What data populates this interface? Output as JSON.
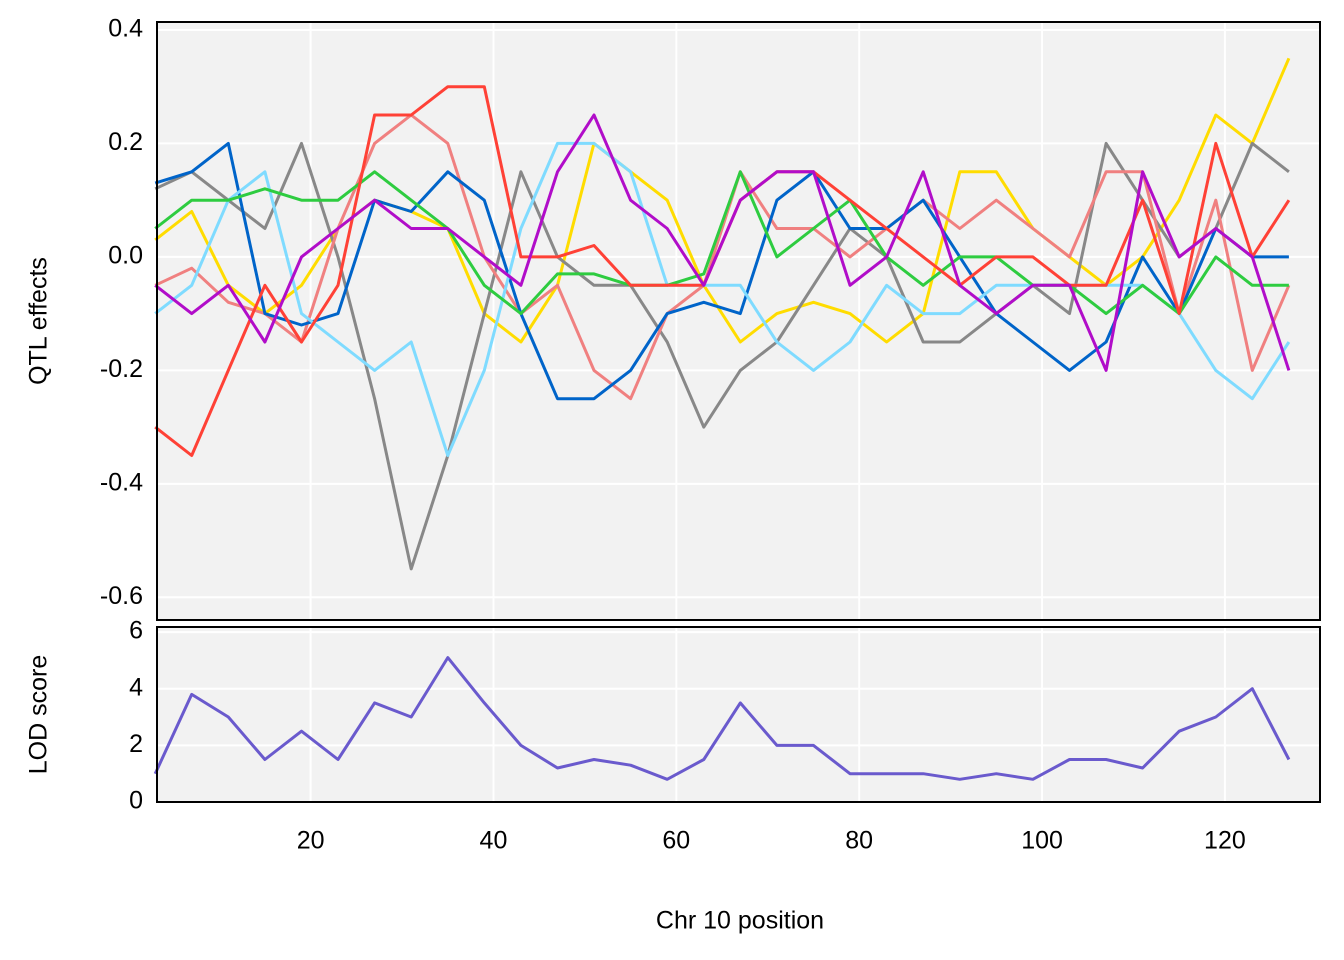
{
  "chart_data": [
    {
      "type": "line",
      "ylabel": "QTL effects",
      "x": [
        3,
        7,
        11,
        15,
        19,
        23,
        27,
        31,
        35,
        39,
        43,
        47,
        51,
        55,
        59,
        63,
        67,
        71,
        75,
        79,
        83,
        87,
        91,
        95,
        99,
        103,
        107,
        111,
        115,
        119,
        123,
        127
      ],
      "xlim": [
        3.2,
        130.4
      ],
      "ylim": [
        -0.64,
        0.414
      ],
      "yticks": [
        0.4,
        0.2,
        {
          "value": 0,
          "label": "0.0"
        },
        -0.2,
        -0.4,
        -0.6
      ],
      "xticks": [
        20,
        40,
        60,
        80,
        100,
        120
      ],
      "grid": true,
      "series": [
        {
          "color": "#FFDC00",
          "values": [
            0.03,
            0.08,
            -0.05,
            -0.1,
            -0.05,
            0.05,
            0.1,
            0.08,
            0.05,
            -0.1,
            -0.15,
            -0.05,
            0.2,
            0.15,
            0.1,
            -0.05,
            -0.15,
            -0.1,
            -0.08,
            -0.1,
            -0.15,
            -0.1,
            0.15,
            0.15,
            0.05,
            0.0,
            -0.05,
            0.0,
            0.1,
            0.25,
            0.2,
            0.35
          ]
        },
        {
          "color": "#888888",
          "values": [
            0.12,
            0.15,
            0.1,
            0.05,
            0.2,
            0.0,
            -0.25,
            -0.55,
            -0.35,
            -0.1,
            0.15,
            0.0,
            -0.05,
            -0.05,
            -0.15,
            -0.3,
            -0.2,
            -0.15,
            -0.05,
            0.05,
            0.0,
            -0.15,
            -0.15,
            -0.1,
            -0.05,
            -0.1,
            0.2,
            0.1,
            0.0,
            0.05,
            0.2,
            0.15
          ]
        },
        {
          "color": "#F08080",
          "values": [
            -0.05,
            -0.02,
            -0.08,
            -0.1,
            -0.15,
            0.05,
            0.2,
            0.25,
            0.2,
            0.0,
            -0.1,
            -0.05,
            -0.2,
            -0.25,
            -0.1,
            -0.05,
            0.15,
            0.05,
            0.05,
            0.0,
            0.05,
            0.1,
            0.05,
            0.1,
            0.05,
            0.0,
            0.15,
            0.15,
            -0.1,
            0.1,
            -0.2,
            -0.05
          ]
        },
        {
          "color": "#0064C9",
          "values": [
            0.13,
            0.15,
            0.2,
            -0.1,
            -0.12,
            -0.1,
            0.1,
            0.08,
            0.15,
            0.1,
            -0.1,
            -0.25,
            -0.25,
            -0.2,
            -0.1,
            -0.08,
            -0.1,
            0.1,
            0.15,
            0.05,
            0.05,
            0.1,
            0.0,
            -0.1,
            -0.15,
            -0.2,
            -0.15,
            0.0,
            -0.1,
            0.05,
            0.0,
            0.0
          ]
        },
        {
          "color": "#7FDBFF",
          "values": [
            -0.1,
            -0.05,
            0.1,
            0.15,
            -0.1,
            -0.15,
            -0.2,
            -0.15,
            -0.35,
            -0.2,
            0.05,
            0.2,
            0.2,
            0.15,
            -0.05,
            -0.05,
            -0.05,
            -0.15,
            -0.2,
            -0.15,
            -0.05,
            -0.1,
            -0.1,
            -0.05,
            -0.05,
            -0.05,
            -0.05,
            -0.05,
            -0.1,
            -0.2,
            -0.25,
            -0.15
          ]
        },
        {
          "color": "#2ECC40",
          "values": [
            0.05,
            0.1,
            0.1,
            0.12,
            0.1,
            0.1,
            0.15,
            0.1,
            0.05,
            -0.05,
            -0.1,
            -0.03,
            -0.03,
            -0.05,
            -0.05,
            -0.03,
            0.15,
            0.0,
            0.05,
            0.1,
            0.0,
            -0.05,
            0.0,
            0.0,
            -0.05,
            -0.05,
            -0.1,
            -0.05,
            -0.1,
            0.0,
            -0.05,
            -0.05
          ]
        },
        {
          "color": "#FF4136",
          "values": [
            -0.3,
            -0.35,
            -0.2,
            -0.05,
            -0.15,
            -0.05,
            0.25,
            0.25,
            0.3,
            0.3,
            0.0,
            0.0,
            0.02,
            -0.05,
            -0.05,
            -0.05,
            0.1,
            0.15,
            0.15,
            0.1,
            0.05,
            0.0,
            -0.05,
            0.0,
            0.0,
            -0.05,
            -0.05,
            0.1,
            -0.1,
            0.2,
            0.0,
            0.1
          ]
        },
        {
          "color": "#B10DC9",
          "values": [
            -0.05,
            -0.1,
            -0.05,
            -0.15,
            0.0,
            0.05,
            0.1,
            0.05,
            0.05,
            0.0,
            -0.05,
            0.15,
            0.25,
            0.1,
            0.05,
            -0.05,
            0.1,
            0.15,
            0.15,
            -0.05,
            0.0,
            0.15,
            -0.05,
            -0.1,
            -0.05,
            -0.05,
            -0.2,
            0.15,
            0.0,
            0.05,
            0.0,
            -0.2
          ]
        }
      ]
    },
    {
      "type": "line",
      "ylabel": "LOD score",
      "xlabel": "Chr 10 position",
      "x": [
        3,
        7,
        11,
        15,
        19,
        23,
        27,
        31,
        35,
        39,
        43,
        47,
        51,
        55,
        59,
        63,
        67,
        71,
        75,
        79,
        83,
        87,
        91,
        95,
        99,
        103,
        107,
        111,
        115,
        119,
        123,
        127
      ],
      "xlim": [
        3.2,
        130.4
      ],
      "ylim": [
        0,
        6.18
      ],
      "yticks": [
        0,
        2,
        4,
        6
      ],
      "xticks": [
        20,
        40,
        60,
        80,
        100,
        120
      ],
      "grid": true,
      "color": "#6A5ACD",
      "values": [
        1,
        3.8,
        3,
        1.5,
        2.5,
        1.5,
        3.5,
        3,
        5.1,
        3.5,
        2,
        1.2,
        1.5,
        1.3,
        0.8,
        1.5,
        3.5,
        2,
        2,
        1,
        1,
        1,
        0.8,
        1,
        0.8,
        1.5,
        1.5,
        1.2,
        2.5,
        3,
        4,
        1.5
      ]
    }
  ]
}
